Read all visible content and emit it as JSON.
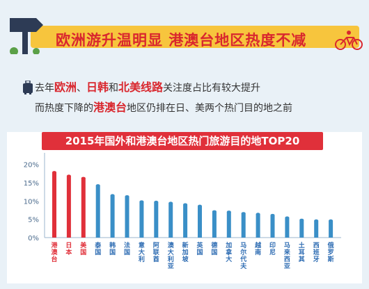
{
  "banner": {
    "title": "欧洲游升温明显 港澳台地区热度不减"
  },
  "intro": {
    "line1": [
      {
        "text": "去年",
        "emph": false
      },
      {
        "text": "欧洲",
        "emph": true
      },
      {
        "text": "、",
        "emph": false
      },
      {
        "text": "日韩",
        "emph": true
      },
      {
        "text": "和",
        "emph": false
      },
      {
        "text": "北美线路",
        "emph": true
      },
      {
        "text": "关注度占比有较大提升",
        "emph": false
      }
    ],
    "line2": [
      {
        "text": "而热度下降的",
        "emph": false
      },
      {
        "text": "港澳台",
        "emph": true
      },
      {
        "text": "地区仍排在日、美两个热门目的地之前",
        "emph": false
      }
    ]
  },
  "colors": {
    "highlight": "#e0303a",
    "normal": "#3a8fc7",
    "label": "#2f6db3"
  },
  "chart_data": {
    "type": "bar",
    "title": "2015年国外和港澳台地区热门旅游目的地TOP20",
    "ylim": [
      0,
      22
    ],
    "yticks": [
      "0%",
      "5%",
      "10%",
      "15%",
      "20%"
    ],
    "ytick_values": [
      0,
      5,
      10,
      15,
      20
    ],
    "categories": [
      "港澳台",
      "日本",
      "美国",
      "泰国",
      "韩国",
      "法国",
      "意大利",
      "阿联酋",
      "澳大利亚",
      "新加坡",
      "英国",
      "德国",
      "加拿大",
      "马尔代夫",
      "越南",
      "印尼",
      "马来西亚",
      "土耳其",
      "西班牙",
      "俄罗斯"
    ],
    "values": [
      17.8,
      16.8,
      16.2,
      14.2,
      11.5,
      11.2,
      9.8,
      9.7,
      9.4,
      9.0,
      8.6,
      7.1,
      7.0,
      6.6,
      6.4,
      6.1,
      5.4,
      4.8,
      4.6,
      4.6
    ],
    "highlight_count": 3
  }
}
